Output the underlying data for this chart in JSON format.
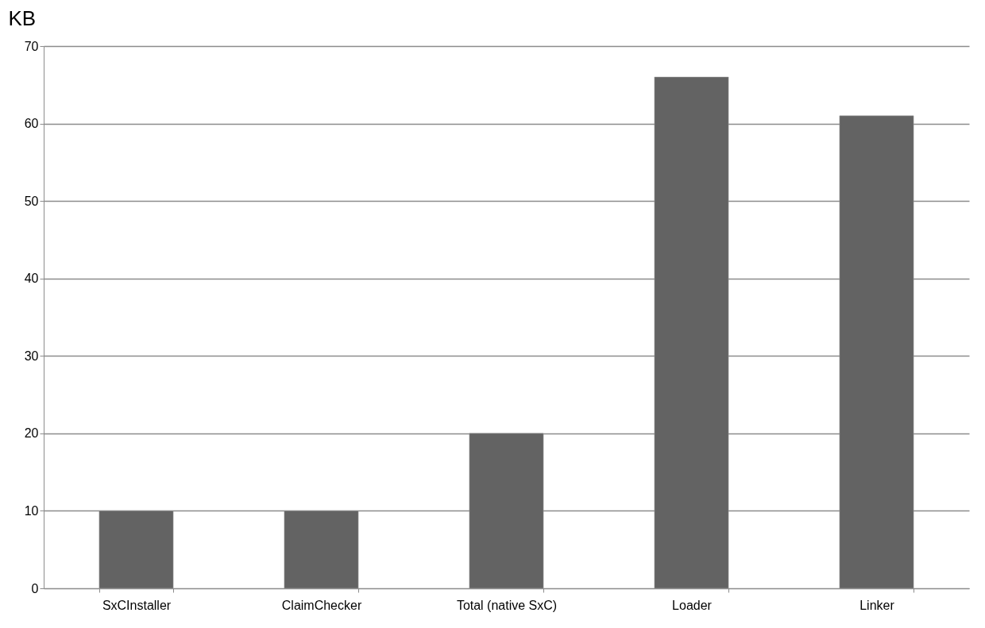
{
  "chart_data": {
    "type": "bar",
    "ylabel": "KB",
    "categories": [
      "SxCInstaller",
      "ClaimChecker",
      "Total (native SxC)",
      "Loader",
      "Linker"
    ],
    "values": [
      10,
      10,
      20,
      66,
      61
    ],
    "color": "#636363",
    "ylim": [
      0,
      70
    ],
    "yticks": [
      0,
      10,
      20,
      30,
      40,
      50,
      60,
      70
    ],
    "grid": "y"
  }
}
